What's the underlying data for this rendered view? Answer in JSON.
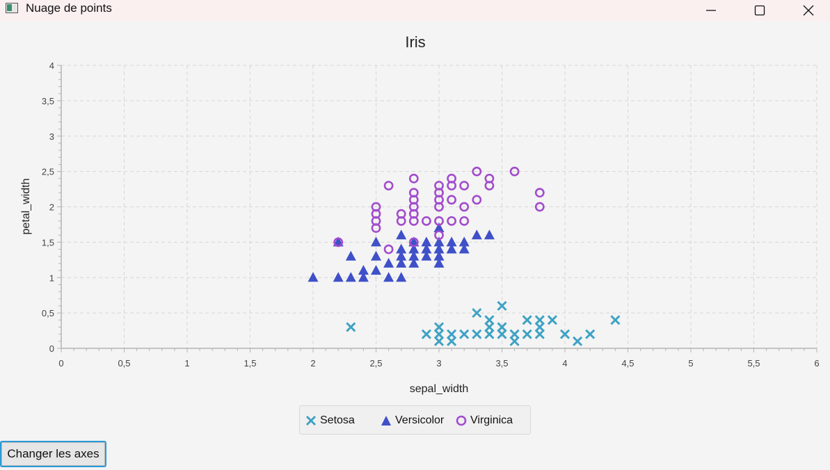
{
  "window": {
    "title": "Nuage de points"
  },
  "button": {
    "label": "Changer les axes"
  },
  "colors": {
    "setosa": "#3ea2c4",
    "versicolor": "#3f50c8",
    "virginica": "#a24ccc",
    "grid": "#d6d6d6",
    "axis": "#b3b3b3"
  },
  "chart_data": {
    "type": "scatter",
    "title": "Iris",
    "xlabel": "sepal_width",
    "ylabel": "petal_width",
    "xlim": [
      0,
      6
    ],
    "ylim": [
      0,
      4
    ],
    "x_major_step": 0.5,
    "y_major_step": 0.5,
    "x_tick_labels": [
      "0",
      "0,5",
      "1",
      "1,5",
      "2",
      "2,5",
      "3",
      "3,5",
      "4",
      "4,5",
      "5",
      "5,5",
      "6"
    ],
    "y_tick_labels": [
      "0",
      "0,5",
      "1",
      "1,5",
      "2",
      "2,5",
      "3",
      "3,5",
      "4"
    ],
    "grid": true,
    "legend_position": "bottom",
    "series": [
      {
        "name": "Setosa",
        "marker": "x",
        "color": "#3ea2c4",
        "points": [
          [
            2.3,
            0.3
          ],
          [
            2.9,
            0.2
          ],
          [
            3.0,
            0.1
          ],
          [
            3.0,
            0.2
          ],
          [
            3.0,
            0.3
          ],
          [
            3.1,
            0.1
          ],
          [
            3.1,
            0.2
          ],
          [
            3.2,
            0.2
          ],
          [
            3.3,
            0.2
          ],
          [
            3.3,
            0.5
          ],
          [
            3.4,
            0.2
          ],
          [
            3.4,
            0.3
          ],
          [
            3.4,
            0.4
          ],
          [
            3.5,
            0.2
          ],
          [
            3.5,
            0.3
          ],
          [
            3.5,
            0.6
          ],
          [
            3.6,
            0.1
          ],
          [
            3.6,
            0.2
          ],
          [
            3.7,
            0.2
          ],
          [
            3.7,
            0.4
          ],
          [
            3.8,
            0.2
          ],
          [
            3.8,
            0.3
          ],
          [
            3.8,
            0.4
          ],
          [
            3.9,
            0.4
          ],
          [
            4.0,
            0.2
          ],
          [
            4.1,
            0.1
          ],
          [
            4.2,
            0.2
          ],
          [
            4.4,
            0.4
          ]
        ]
      },
      {
        "name": "Versicolor",
        "marker": "triangle",
        "color": "#3f50c8",
        "points": [
          [
            2.0,
            1.0
          ],
          [
            2.2,
            1.0
          ],
          [
            2.2,
            1.5
          ],
          [
            2.3,
            1.0
          ],
          [
            2.3,
            1.3
          ],
          [
            2.4,
            1.0
          ],
          [
            2.4,
            1.1
          ],
          [
            2.5,
            1.1
          ],
          [
            2.5,
            1.3
          ],
          [
            2.5,
            1.5
          ],
          [
            2.6,
            1.0
          ],
          [
            2.6,
            1.2
          ],
          [
            2.7,
            1.0
          ],
          [
            2.7,
            1.2
          ],
          [
            2.7,
            1.3
          ],
          [
            2.7,
            1.4
          ],
          [
            2.7,
            1.6
          ],
          [
            2.8,
            1.2
          ],
          [
            2.8,
            1.3
          ],
          [
            2.8,
            1.4
          ],
          [
            2.8,
            1.5
          ],
          [
            2.9,
            1.3
          ],
          [
            2.9,
            1.4
          ],
          [
            2.9,
            1.5
          ],
          [
            3.0,
            1.2
          ],
          [
            3.0,
            1.3
          ],
          [
            3.0,
            1.4
          ],
          [
            3.0,
            1.5
          ],
          [
            3.0,
            1.7
          ],
          [
            3.1,
            1.4
          ],
          [
            3.1,
            1.5
          ],
          [
            3.2,
            1.4
          ],
          [
            3.2,
            1.5
          ],
          [
            3.3,
            1.6
          ],
          [
            3.4,
            1.6
          ]
        ]
      },
      {
        "name": "Virginica",
        "marker": "circle",
        "color": "#a24ccc",
        "points": [
          [
            2.2,
            1.5
          ],
          [
            2.5,
            1.7
          ],
          [
            2.5,
            1.8
          ],
          [
            2.5,
            1.9
          ],
          [
            2.5,
            2.0
          ],
          [
            2.6,
            1.4
          ],
          [
            2.6,
            2.3
          ],
          [
            2.7,
            1.8
          ],
          [
            2.7,
            1.9
          ],
          [
            2.8,
            1.5
          ],
          [
            2.8,
            1.8
          ],
          [
            2.8,
            1.9
          ],
          [
            2.8,
            2.0
          ],
          [
            2.8,
            2.1
          ],
          [
            2.8,
            2.2
          ],
          [
            2.8,
            2.4
          ],
          [
            2.9,
            1.8
          ],
          [
            3.0,
            1.6
          ],
          [
            3.0,
            1.8
          ],
          [
            3.0,
            2.0
          ],
          [
            3.0,
            2.1
          ],
          [
            3.0,
            2.2
          ],
          [
            3.0,
            2.3
          ],
          [
            3.1,
            1.8
          ],
          [
            3.1,
            2.1
          ],
          [
            3.1,
            2.3
          ],
          [
            3.1,
            2.4
          ],
          [
            3.2,
            1.8
          ],
          [
            3.2,
            2.0
          ],
          [
            3.2,
            2.3
          ],
          [
            3.3,
            2.1
          ],
          [
            3.3,
            2.5
          ],
          [
            3.4,
            2.3
          ],
          [
            3.4,
            2.4
          ],
          [
            3.6,
            2.5
          ],
          [
            3.8,
            2.0
          ],
          [
            3.8,
            2.2
          ]
        ]
      }
    ]
  }
}
